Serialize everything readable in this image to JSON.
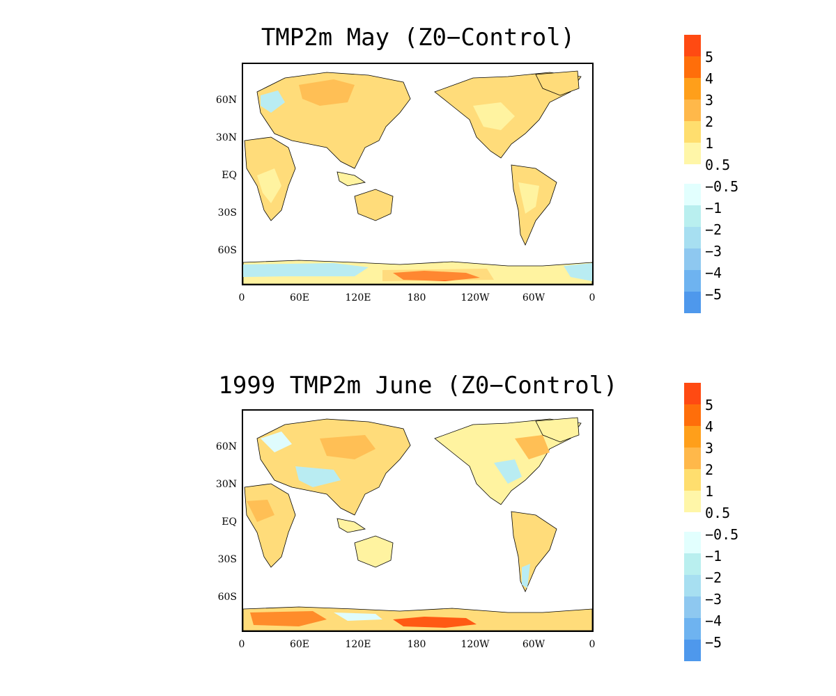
{
  "panels": [
    {
      "title": "TMP2m May (Z0−Control)",
      "lat_labels": [
        "60N",
        "30N",
        "EQ",
        "30S",
        "60S"
      ],
      "lon_labels": [
        "0",
        "60E",
        "120E",
        "180",
        "120W",
        "60W",
        "0"
      ]
    },
    {
      "title": "1999 TMP2m June (Z0−Control)",
      "lat_labels": [
        "60N",
        "30N",
        "EQ",
        "30S",
        "60S"
      ],
      "lon_labels": [
        "0",
        "60E",
        "120E",
        "180",
        "120W",
        "60W",
        "0"
      ]
    }
  ],
  "colorbar": {
    "warm_labels": [
      "5",
      "4",
      "3",
      "2",
      "1",
      "0.5"
    ],
    "cool_labels": [
      "−0.5",
      "−1",
      "−2",
      "−3",
      "−4",
      "−5"
    ],
    "warm_colors": [
      "#ff4a12",
      "#ff6e0a",
      "#ff9f1a",
      "#ffb84a",
      "#ffde6e",
      "#fff6a8"
    ],
    "cool_colors": [
      "#e2fffe",
      "#b9efef",
      "#a7dff1",
      "#8ec8f0",
      "#6eb3f0",
      "#4e98ec"
    ]
  },
  "map_colors": {
    "warm_light": "#fff3a0",
    "warm_mid": "#ffdc7a",
    "warm_strong": "#ffbf55",
    "warm_hot": "#ff8c2a",
    "warm_max": "#ff5a14",
    "cool_light": "#dffcfd",
    "cool_mid": "#b9ecf2",
    "coast": "#000000"
  }
}
